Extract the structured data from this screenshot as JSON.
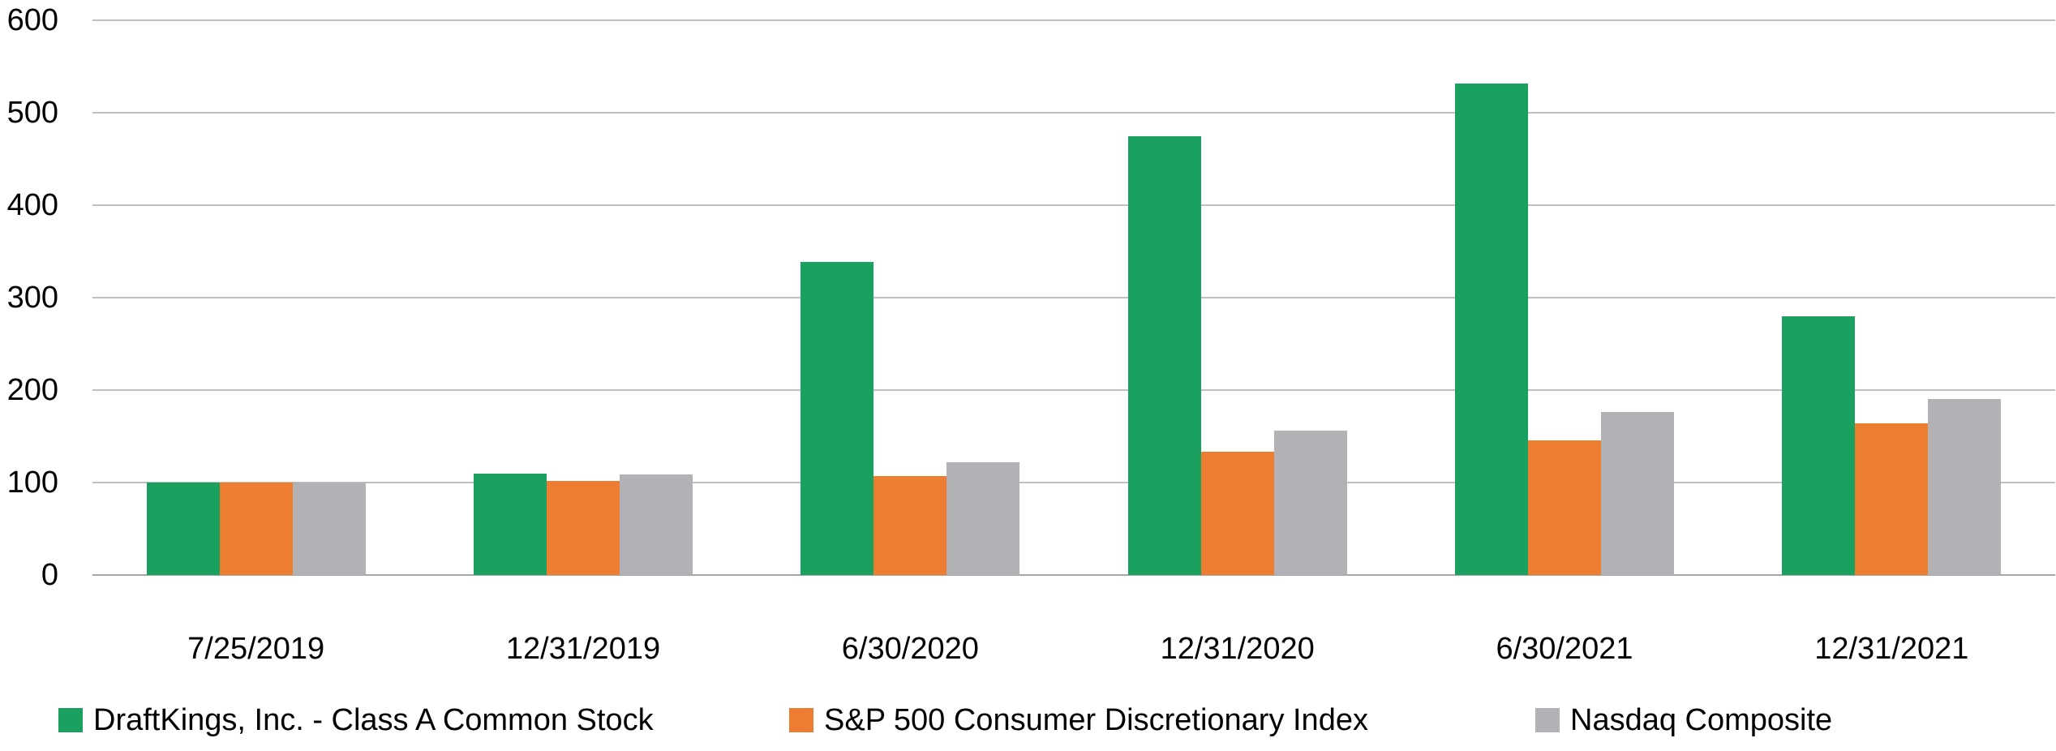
{
  "chart_data": {
    "type": "bar",
    "title": "",
    "xlabel": "",
    "ylabel": "",
    "categories": [
      "7/25/2019",
      "12/31/2019",
      "6/30/2020",
      "12/31/2020",
      "6/30/2021",
      "12/31/2021"
    ],
    "series": [
      {
        "name": "DraftKings, Inc. - Class A Common Stock",
        "color": "#1AA160",
        "values": [
          100,
          110,
          339,
          475,
          532,
          280
        ]
      },
      {
        "name": "S&P 500 Consumer Discretionary Index",
        "color": "#ED7D31",
        "values": [
          100,
          102,
          107,
          133,
          146,
          164
        ]
      },
      {
        "name": "Nasdaq Composite",
        "color": "#B2B2B6",
        "values": [
          100,
          109,
          122,
          156,
          176,
          190
        ]
      }
    ],
    "yticks": [
      0,
      100,
      200,
      300,
      400,
      500,
      600
    ],
    "ylim": [
      0,
      600
    ],
    "grid": true,
    "legend_position": "bottom"
  },
  "colors": {
    "background": "#FFFFFF",
    "gridline": "#BFBFBF",
    "axis_line": "#A6A6A6",
    "text": "#000000"
  }
}
